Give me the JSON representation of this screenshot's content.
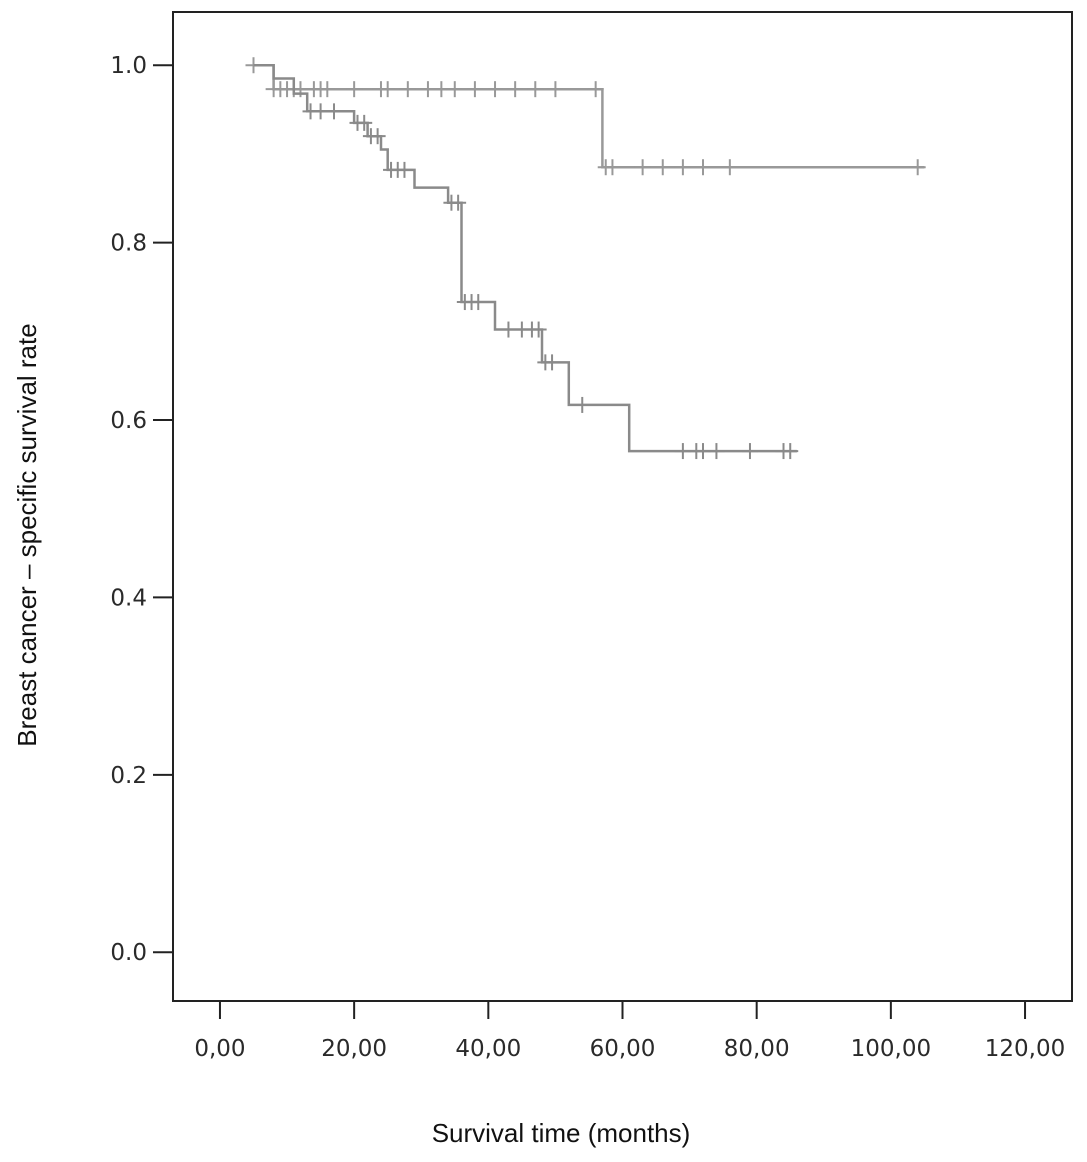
{
  "chart_data": {
    "type": "line",
    "subtype": "kaplan-meier",
    "title": "",
    "xlabel": "Survival time (months)",
    "ylabel": "Breast cancer – specific survival rate",
    "xlim": [
      -7,
      127
    ],
    "ylim": [
      -0.055,
      1.06
    ],
    "x_ticks": [
      0,
      20,
      40,
      60,
      80,
      100,
      120
    ],
    "x_tick_labels": [
      "0,00",
      "20,00",
      "40,00",
      "60,00",
      "80,00",
      "100,00",
      "120,00"
    ],
    "y_ticks": [
      0,
      0.2,
      0.4,
      0.6,
      0.8,
      1.0
    ],
    "y_tick_labels": [
      "0.0",
      "0.2",
      "0.4",
      "0.6",
      "0.8",
      "1.0"
    ],
    "grid": false,
    "legend": "none",
    "series": [
      {
        "color": "#999999",
        "step_points": [
          [
            5,
            1.0
          ],
          [
            8,
            1.0
          ],
          [
            8,
            0.973
          ],
          [
            57,
            0.973
          ],
          [
            57,
            0.885
          ],
          [
            105,
            0.885
          ]
        ],
        "censored": [
          [
            5,
            1.0
          ],
          [
            8,
            0.973
          ],
          [
            9,
            0.973
          ],
          [
            10,
            0.973
          ],
          [
            11,
            0.973
          ],
          [
            12,
            0.973
          ],
          [
            14,
            0.973
          ],
          [
            15,
            0.973
          ],
          [
            16,
            0.973
          ],
          [
            20,
            0.973
          ],
          [
            24,
            0.973
          ],
          [
            25,
            0.973
          ],
          [
            28,
            0.973
          ],
          [
            31,
            0.973
          ],
          [
            33,
            0.973
          ],
          [
            35,
            0.973
          ],
          [
            38,
            0.973
          ],
          [
            41,
            0.973
          ],
          [
            44,
            0.973
          ],
          [
            47,
            0.973
          ],
          [
            50,
            0.973
          ],
          [
            56,
            0.973
          ],
          [
            57.5,
            0.885
          ],
          [
            58.5,
            0.885
          ],
          [
            63,
            0.885
          ],
          [
            66,
            0.885
          ],
          [
            69,
            0.885
          ],
          [
            72,
            0.885
          ],
          [
            76,
            0.885
          ],
          [
            104,
            0.885
          ]
        ]
      },
      {
        "color": "#8a8a8a",
        "step_points": [
          [
            5,
            1.0
          ],
          [
            8,
            1.0
          ],
          [
            8,
            0.985
          ],
          [
            11,
            0.985
          ],
          [
            11,
            0.968
          ],
          [
            13,
            0.968
          ],
          [
            13,
            0.948
          ],
          [
            20,
            0.948
          ],
          [
            20,
            0.935
          ],
          [
            22,
            0.935
          ],
          [
            22,
            0.92
          ],
          [
            24,
            0.92
          ],
          [
            24,
            0.905
          ],
          [
            25,
            0.905
          ],
          [
            25,
            0.882
          ],
          [
            29,
            0.882
          ],
          [
            29,
            0.862
          ],
          [
            34,
            0.862
          ],
          [
            34,
            0.845
          ],
          [
            36,
            0.845
          ],
          [
            36,
            0.733
          ],
          [
            41,
            0.733
          ],
          [
            41,
            0.702
          ],
          [
            48,
            0.702
          ],
          [
            48,
            0.665
          ],
          [
            52,
            0.665
          ],
          [
            52,
            0.617
          ],
          [
            61,
            0.617
          ],
          [
            61,
            0.565
          ],
          [
            86,
            0.565
          ]
        ],
        "censored": [
          [
            13.5,
            0.948
          ],
          [
            15,
            0.948
          ],
          [
            17,
            0.948
          ],
          [
            20.5,
            0.935
          ],
          [
            21.5,
            0.935
          ],
          [
            22.5,
            0.92
          ],
          [
            23.5,
            0.92
          ],
          [
            25.5,
            0.882
          ],
          [
            26.5,
            0.882
          ],
          [
            27.5,
            0.882
          ],
          [
            34.5,
            0.845
          ],
          [
            35.5,
            0.845
          ],
          [
            36.5,
            0.733
          ],
          [
            37.5,
            0.733
          ],
          [
            38.5,
            0.733
          ],
          [
            43,
            0.702
          ],
          [
            45,
            0.702
          ],
          [
            46.5,
            0.702
          ],
          [
            47.5,
            0.702
          ],
          [
            48.5,
            0.665
          ],
          [
            49.5,
            0.665
          ],
          [
            54,
            0.617
          ],
          [
            69,
            0.565
          ],
          [
            71,
            0.565
          ],
          [
            72,
            0.565
          ],
          [
            74,
            0.565
          ],
          [
            79,
            0.565
          ],
          [
            84,
            0.565
          ],
          [
            85,
            0.565
          ]
        ]
      }
    ]
  }
}
